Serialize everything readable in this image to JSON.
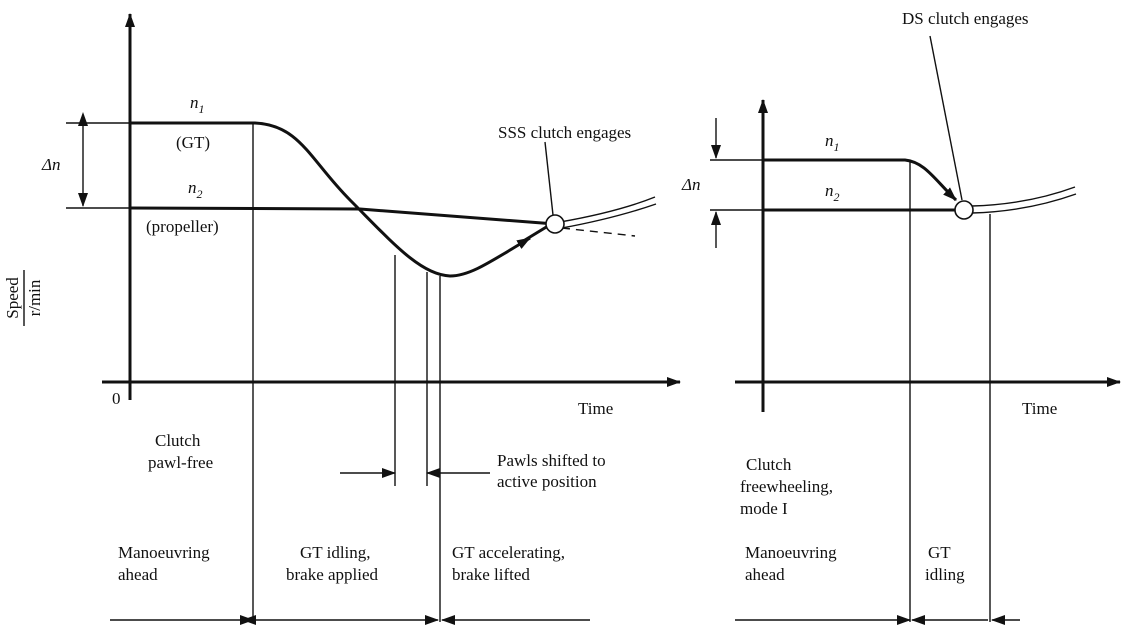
{
  "left": {
    "speed_label": {
      "numerator": "Speed",
      "denominator": "r/min"
    },
    "origin": "0",
    "time_label": "Time",
    "n1": {
      "symbol": "n",
      "subscript": "1",
      "note": "(GT)"
    },
    "n2": {
      "symbol": "n",
      "subscript": "2",
      "note": "(propeller)"
    },
    "delta": "Δn",
    "callout": "SSS clutch engages",
    "clutch_state": [
      "Clutch",
      "pawl-free"
    ],
    "pawls": [
      "Pawls shifted to",
      "active position"
    ],
    "phases": [
      [
        "Manoeuvring",
        "ahead"
      ],
      [
        "GT idling,",
        "brake applied"
      ],
      [
        "GT accelerating,",
        "brake lifted"
      ]
    ]
  },
  "right": {
    "time_label": "Time",
    "n1": {
      "symbol": "n",
      "subscript": "1"
    },
    "n2": {
      "symbol": "n",
      "subscript": "2"
    },
    "delta": "Δn",
    "callout": "DS clutch engages",
    "clutch_state": [
      "Clutch",
      "freewheeling,",
      "mode I"
    ],
    "phases": [
      [
        "Manoeuvring",
        "ahead"
      ],
      [
        "GT",
        "idling"
      ]
    ]
  }
}
